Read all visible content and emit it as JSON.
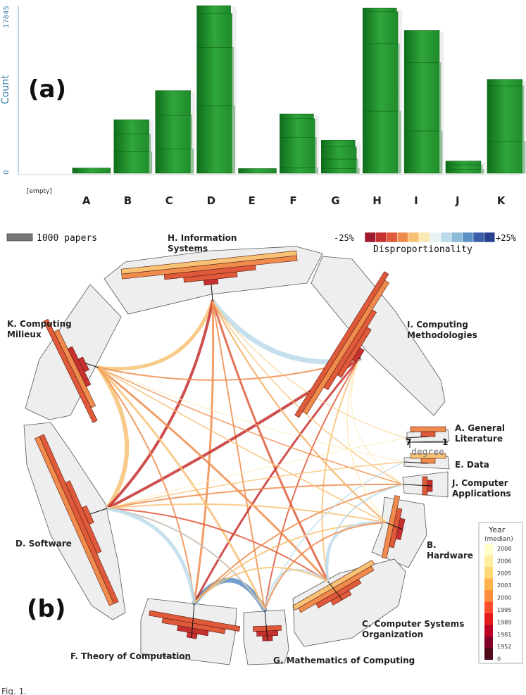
{
  "panel_a": {
    "label": "(a)",
    "ylabel": "Count",
    "ytick_max": "17845",
    "ytick_min": "0",
    "empty_label": "[empty]"
  },
  "panel_b": {
    "label": "(b)",
    "scale_label": "1000 papers",
    "disp_min": "-25%",
    "disp_max": "+25%",
    "disp_title": "Disproportionality",
    "degree_title": "degree",
    "degree_left": "7",
    "degree_right": "1",
    "year_title": "Year",
    "year_sub": "(median)",
    "year_ticks": [
      "2008",
      "2006",
      "2005",
      "2003",
      "2000",
      "1995",
      "1989",
      "1981",
      "1952",
      "0"
    ],
    "disp_colors": [
      "#9e1b2f",
      "#c5312f",
      "#de5a3a",
      "#ef8c4d",
      "#f8c275",
      "#fbe9b4",
      "#e8f1f4",
      "#bcdbea",
      "#8bbbd9",
      "#5a8fc4",
      "#3b5fa8",
      "#283f8f"
    ],
    "year_colors": [
      "#ffffcc",
      "#ffeda0",
      "#fed976",
      "#feb24c",
      "#fd8d3c",
      "#fc4e2a",
      "#e31a1c",
      "#bd0026",
      "#800026",
      "#4d0a1a"
    ]
  },
  "caption_fragment": "Fig. 1.",
  "chart_data": [
    {
      "type": "bar",
      "title": "(a)",
      "xlabel": "",
      "ylabel": "Count",
      "ylim": [
        0,
        17845
      ],
      "categories": [
        "[empty]",
        "A",
        "B",
        "C",
        "D",
        "E",
        "F",
        "G",
        "H",
        "I",
        "J",
        "K"
      ],
      "values": [
        0,
        560,
        5700,
        8800,
        17845,
        500,
        6300,
        3500,
        17600,
        15200,
        1300,
        10000
      ],
      "stack_breaks": [
        [],
        [],
        [
          2300,
          4200,
          5700
        ],
        [
          2600,
          6200,
          8800
        ],
        [
          7200,
          13400,
          17000,
          17845
        ],
        [],
        [
          600,
          3800,
          5800,
          6300
        ],
        [
          500,
          1500,
          2800,
          3500
        ],
        [
          6600,
          13800,
          17200,
          17600
        ],
        [
          4500,
          11800,
          15200
        ],
        [
          400,
          900,
          1300
        ],
        [
          3400,
          9300,
          10000
        ]
      ]
    },
    {
      "type": "diagram",
      "title": "(b)",
      "categories": [
        {
          "key": "H",
          "label": "H. Information\nSystems"
        },
        {
          "key": "I",
          "label": "I. Computing\nMethodologies"
        },
        {
          "key": "A",
          "label": "A. General\nLiterature"
        },
        {
          "key": "E",
          "label": "E. Data"
        },
        {
          "key": "J",
          "label": "J. Computer\nApplications"
        },
        {
          "key": "B",
          "label": "B.\nHardware"
        },
        {
          "key": "C",
          "label": "C. Computer Systems\nOrganization"
        },
        {
          "key": "G",
          "label": "G. Mathematics of Computing"
        },
        {
          "key": "F",
          "label": "F. Theory of Computation"
        },
        {
          "key": "D",
          "label": "D. Software"
        },
        {
          "key": "K",
          "label": "K. Computing\nMilieux"
        }
      ]
    }
  ]
}
